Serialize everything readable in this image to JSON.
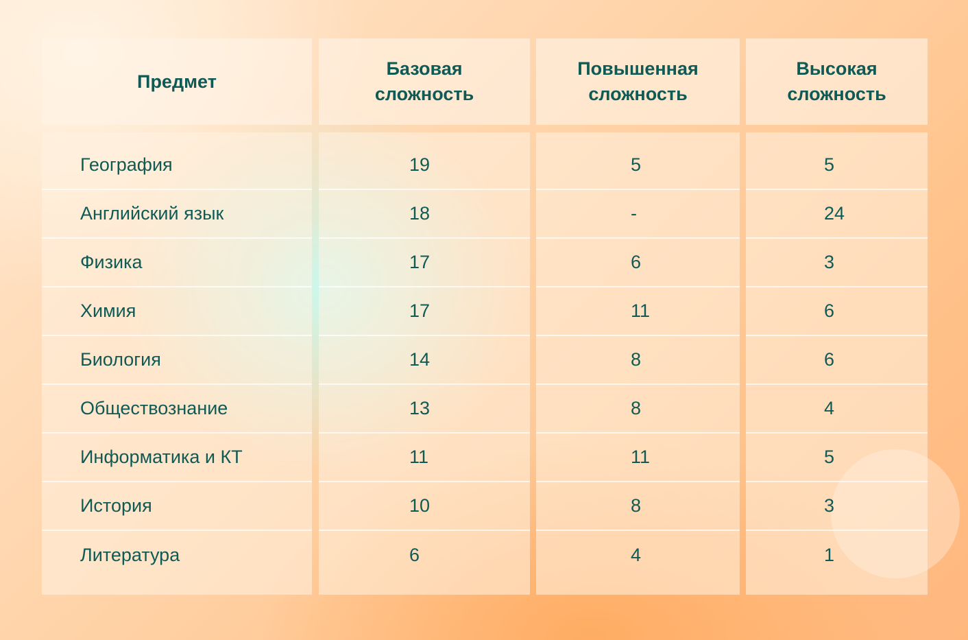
{
  "table": {
    "headers": [
      "Предмет",
      "Базовая сложность",
      "Повышенная сложность",
      "Высокая сложность"
    ],
    "rows": [
      [
        "География",
        "19",
        "5",
        "5"
      ],
      [
        "Английский язык",
        "18",
        "-",
        "24"
      ],
      [
        "Физика",
        "17",
        "6",
        "3"
      ],
      [
        "Химия",
        "17",
        "11",
        "6"
      ],
      [
        "Биология",
        "14",
        "8",
        "6"
      ],
      [
        "Обществознание",
        "13",
        "8",
        "4"
      ],
      [
        "Информатика и КТ",
        "11",
        "11",
        "5"
      ],
      [
        "История",
        "10",
        "8",
        "3"
      ],
      [
        "Литература",
        "6",
        "4",
        "1"
      ]
    ]
  },
  "colors": {
    "text": "#0f5a55",
    "background_top": "#ffe7cf",
    "background_bottom": "#ffb77e",
    "accent_glow": "#c8faf0"
  }
}
